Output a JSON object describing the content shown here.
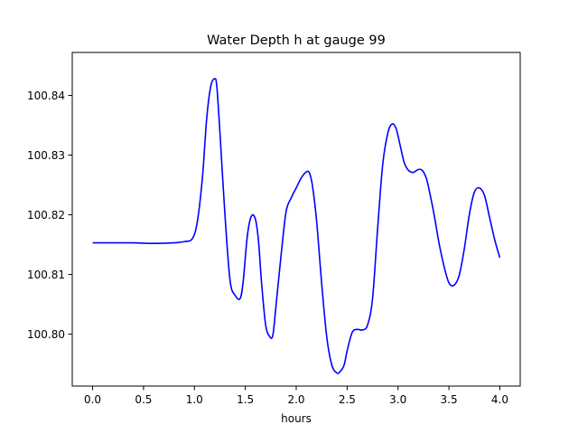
{
  "chart_data": {
    "type": "line",
    "title": "Water Depth h at gauge 99",
    "xlabel": "hours",
    "ylabel": "",
    "xlim": [
      -0.2,
      4.2
    ],
    "ylim": [
      100.7913,
      100.8472
    ],
    "xticks": [
      0.0,
      0.5,
      1.0,
      1.5,
      2.0,
      2.5,
      3.0,
      3.5,
      4.0
    ],
    "xtick_labels": [
      "0.0",
      "0.5",
      "1.0",
      "1.5",
      "2.0",
      "2.5",
      "3.0",
      "3.5",
      "4.0"
    ],
    "yticks": [
      100.8,
      100.81,
      100.82,
      100.83,
      100.84
    ],
    "ytick_labels": [
      "100.80",
      "100.81",
      "100.82",
      "100.83",
      "100.84"
    ],
    "grid": false,
    "legend": "none",
    "series": [
      {
        "color": "#0000ff",
        "x": [
          0.0,
          0.2,
          0.4,
          0.6,
          0.8,
          0.9,
          0.98,
          1.03,
          1.08,
          1.12,
          1.16,
          1.2,
          1.22,
          1.25,
          1.3,
          1.35,
          1.4,
          1.45,
          1.48,
          1.52,
          1.56,
          1.6,
          1.63,
          1.66,
          1.7,
          1.74,
          1.77,
          1.8,
          1.85,
          1.9,
          1.95,
          2.0,
          2.05,
          2.1,
          2.13,
          2.16,
          2.2,
          2.25,
          2.3,
          2.35,
          2.4,
          2.43,
          2.47,
          2.5,
          2.55,
          2.6,
          2.65,
          2.7,
          2.75,
          2.8,
          2.85,
          2.9,
          2.94,
          2.98,
          3.02,
          3.06,
          3.1,
          3.15,
          3.2,
          3.24,
          3.28,
          3.32,
          3.36,
          3.4,
          3.45,
          3.5,
          3.55,
          3.6,
          3.65,
          3.7,
          3.75,
          3.8,
          3.85,
          3.9,
          3.95,
          4.0
        ],
        "y": [
          100.8153,
          100.8153,
          100.8153,
          100.8152,
          100.8153,
          100.8155,
          100.816,
          100.819,
          100.8265,
          100.836,
          100.8415,
          100.8428,
          100.8415,
          100.834,
          100.82,
          100.809,
          100.8065,
          100.806,
          100.809,
          100.8165,
          100.8198,
          100.8192,
          100.8155,
          100.8085,
          100.8015,
          100.7996,
          100.7998,
          100.8045,
          100.813,
          100.8205,
          100.8228,
          100.8245,
          100.8262,
          100.8272,
          100.827,
          100.8248,
          100.819,
          100.8085,
          100.7995,
          100.7948,
          100.7935,
          100.7937,
          100.7948,
          100.7972,
          100.8003,
          100.8008,
          100.8007,
          100.8015,
          100.806,
          100.8178,
          100.8285,
          100.8337,
          100.8352,
          100.8345,
          100.8317,
          100.8288,
          100.8275,
          100.8271,
          100.8276,
          100.8274,
          100.826,
          100.823,
          100.8195,
          100.8155,
          100.8115,
          100.8086,
          100.8082,
          100.8098,
          100.8142,
          100.82,
          100.8238,
          100.8245,
          100.8232,
          100.8195,
          100.8158,
          100.8128
        ]
      }
    ]
  }
}
